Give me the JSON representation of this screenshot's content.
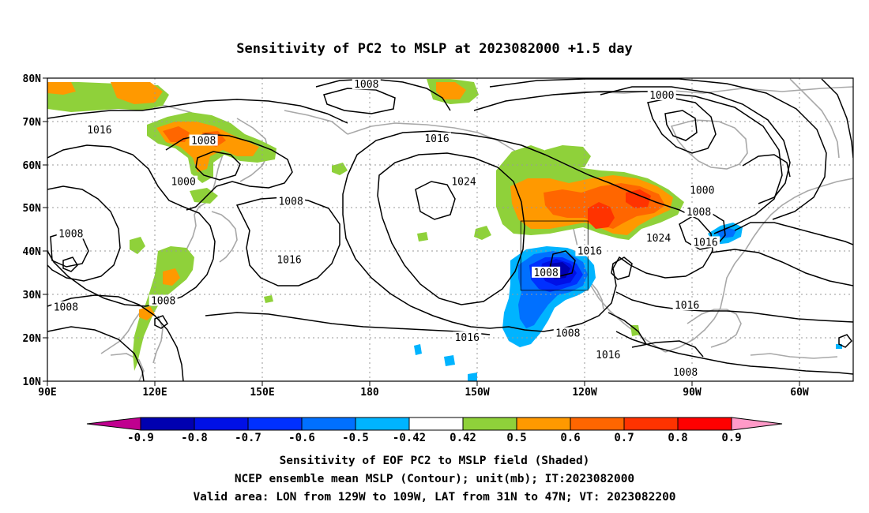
{
  "title": "Sensitivity of PC2 to MSLP at 2023082000 +1.5 day",
  "lat_ticks": [
    "80N",
    "70N",
    "60N",
    "50N",
    "40N",
    "30N",
    "20N",
    "10N"
  ],
  "lon_ticks": [
    "90E",
    "120E",
    "150E",
    "180",
    "150W",
    "120W",
    "90W",
    "60W"
  ],
  "colorbar_labels": [
    "-0.9",
    "-0.8",
    "-0.7",
    "-0.6",
    "-0.5",
    "-0.42",
    "0.42",
    "0.5",
    "0.6",
    "0.7",
    "0.8",
    "0.9"
  ],
  "colorbar_colors": [
    "#c0008f",
    "#0000b0",
    "#0010e6",
    "#0030ff",
    "#0070ff",
    "#00b4ff",
    "#ffffff",
    "#8fd13a",
    "#ff9900",
    "#ff6600",
    "#ff3300",
    "#ff0000",
    "#ff9ac8"
  ],
  "contour_labels": [
    {
      "text": "1008",
      "lon": -175,
      "lat": 78.5
    },
    {
      "text": "1000",
      "lon": -87,
      "lat": 76
    },
    {
      "text": "1016",
      "lon": 105.5,
      "lat": 68
    },
    {
      "text": "1008",
      "lon": 136.5,
      "lat": 65.5
    },
    {
      "text": "1016",
      "lon": -154,
      "lat": 66
    },
    {
      "text": "1024",
      "lon": -146,
      "lat": 56
    },
    {
      "text": "1000",
      "lon": 130.5,
      "lat": 56
    },
    {
      "text": "1008",
      "lon": 162.5,
      "lat": 51.5
    },
    {
      "text": "1000",
      "lon": -75,
      "lat": 54
    },
    {
      "text": "1008",
      "lon": -76,
      "lat": 49
    },
    {
      "text": "1008",
      "lon": 97,
      "lat": 44
    },
    {
      "text": "1024",
      "lon": -88,
      "lat": 43
    },
    {
      "text": "1016",
      "lon": -74,
      "lat": 42
    },
    {
      "text": "1016",
      "lon": -108.5,
      "lat": 40
    },
    {
      "text": "1016",
      "lon": 162,
      "lat": 38
    },
    {
      "text": "1008",
      "lon": -121.5,
      "lat": 35
    },
    {
      "text": "1008",
      "lon": 124.5,
      "lat": 28.5
    },
    {
      "text": "1008",
      "lon": 95.5,
      "lat": 27
    },
    {
      "text": "1016",
      "lon": -79.5,
      "lat": 27.5
    },
    {
      "text": "1016",
      "lon": -145,
      "lat": 20
    },
    {
      "text": "1008",
      "lon": -115,
      "lat": 21
    },
    {
      "text": "1016",
      "lon": -103,
      "lat": 16
    },
    {
      "text": "1008",
      "lon": -80,
      "lat": 12
    }
  ],
  "caption_lines": [
    "Sensitivity of EOF PC2 to MSLP field (Shaded)",
    "NCEP ensemble mean MSLP (Contour); unit(mb); IT:2023082000",
    "Valid area: LON from 129W to 109W, LAT from 31N to 47N; VT: 2023082200"
  ],
  "valid_box": {
    "lon_min": -129,
    "lon_max": -109,
    "lat_min": 31,
    "lat_max": 47
  }
}
